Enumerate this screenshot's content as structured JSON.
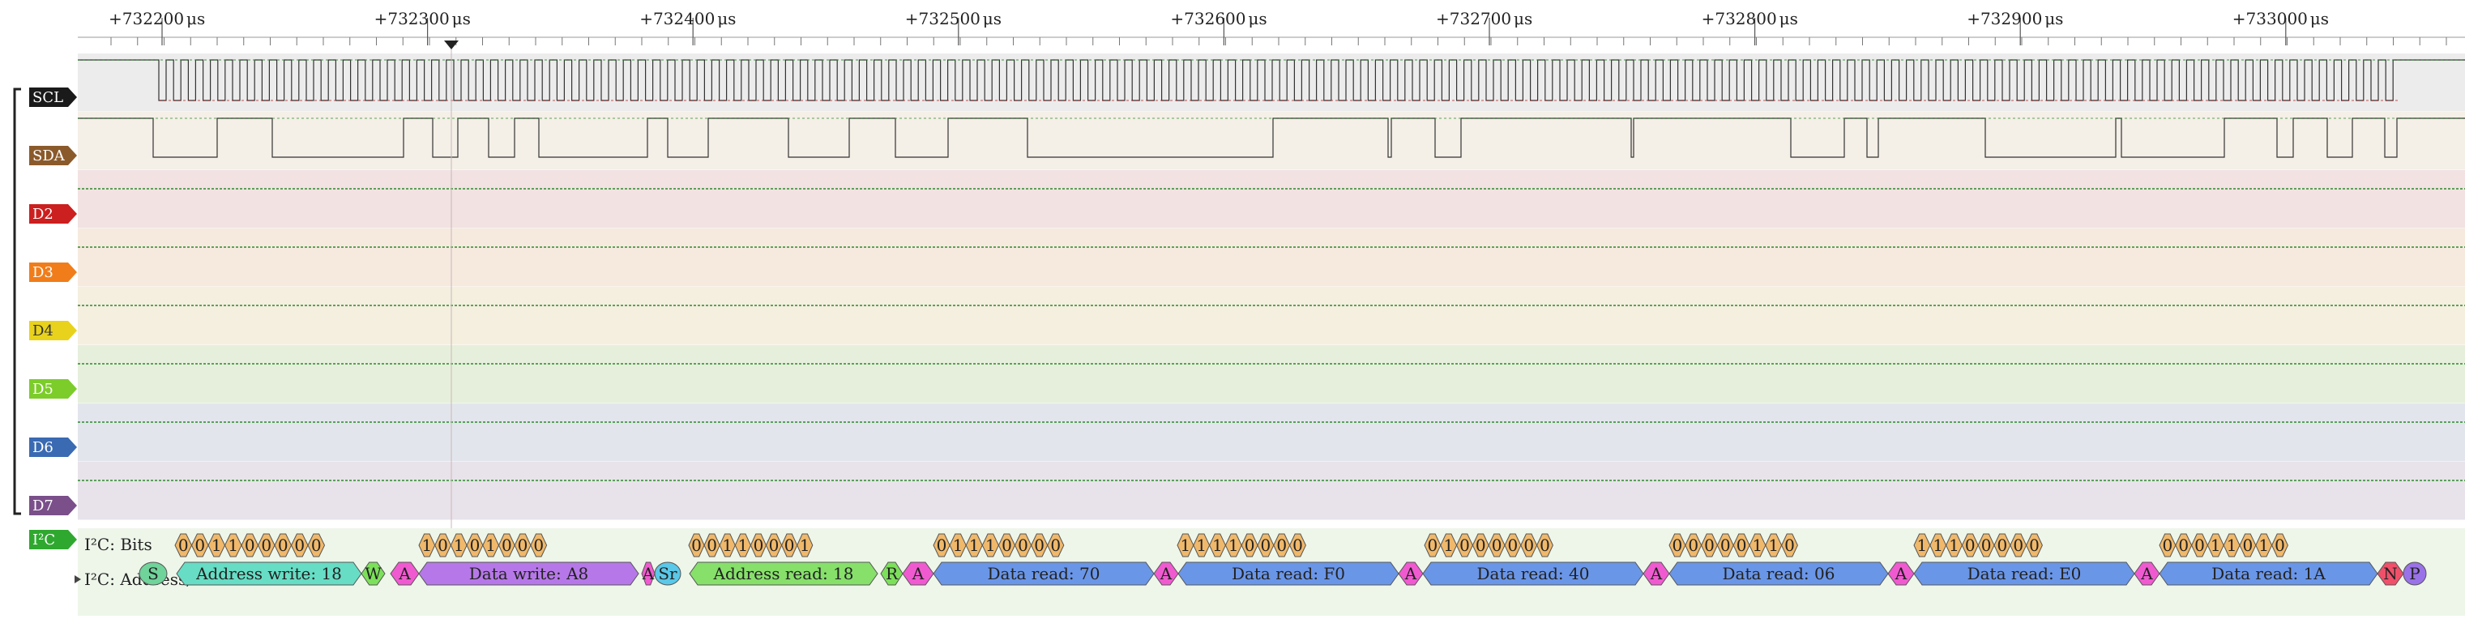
{
  "ruler": {
    "unit": "μs",
    "ticks": [
      "+732200",
      "+732300",
      "+732400",
      "+732500",
      "+732600",
      "+732700",
      "+732800",
      "+732900",
      "+733000"
    ]
  },
  "channels": [
    {
      "id": "SCL",
      "label": "SCL",
      "tag_color": "#1a1a1a",
      "text_color": "#ffffff",
      "row_bg": "#ececec"
    },
    {
      "id": "SDA",
      "label": "SDA",
      "tag_color": "#8b5a2b",
      "text_color": "#ffffff",
      "row_bg": "#f4efe7"
    },
    {
      "id": "D2",
      "label": "D2",
      "tag_color": "#cc1f1f",
      "text_color": "#ffffff",
      "row_bg": "#f2e2e2"
    },
    {
      "id": "D3",
      "label": "D3",
      "tag_color": "#f07d1a",
      "text_color": "#ffffff",
      "row_bg": "#f6eadf"
    },
    {
      "id": "D4",
      "label": "D4",
      "tag_color": "#e8d21c",
      "text_color": "#333333",
      "row_bg": "#f4efdf"
    },
    {
      "id": "D5",
      "label": "D5",
      "tag_color": "#7ccc2a",
      "text_color": "#ffffff",
      "row_bg": "#e6efdc"
    },
    {
      "id": "D6",
      "label": "D6",
      "tag_color": "#3a6ab2",
      "text_color": "#ffffff",
      "row_bg": "#e2e6ec"
    },
    {
      "id": "D7",
      "label": "D7",
      "tag_color": "#7a4f8a",
      "text_color": "#ffffff",
      "row_bg": "#e8e3ea"
    }
  ],
  "decoder": {
    "tag_label": "I²C",
    "tag_color": "#2fa82f",
    "bits_row_label": "I²C: Bits",
    "data_row_label": "I²C: Address/Data",
    "bits": [
      "0",
      "0",
      "1",
      "1",
      "0",
      "0",
      "0",
      "0",
      "0",
      "1",
      "0",
      "1",
      "0",
      "1",
      "0",
      "0",
      "0",
      "0",
      "0",
      "1",
      "1",
      "0",
      "0",
      "0",
      "1",
      "0",
      "1",
      "1",
      "1",
      "0",
      "0",
      "0",
      "0",
      "1",
      "1",
      "1",
      "1",
      "0",
      "0",
      "0",
      "0",
      "0",
      "1",
      "0",
      "0",
      "0",
      "0",
      "0",
      "0",
      "0",
      "0",
      "0",
      "0",
      "0",
      "1",
      "1",
      "0",
      "1",
      "1",
      "1",
      "0",
      "0",
      "0",
      "0",
      "0",
      "0",
      "0",
      "0",
      "1",
      "1",
      "0",
      "1",
      "0"
    ],
    "annotations": [
      {
        "kind": "start",
        "text": "S"
      },
      {
        "kind": "addr_write",
        "text": "Address write: 18"
      },
      {
        "kind": "rw",
        "text": "W"
      },
      {
        "kind": "ack",
        "text": "A"
      },
      {
        "kind": "data_write",
        "text": "Data write: A8"
      },
      {
        "kind": "ack",
        "text": "A"
      },
      {
        "kind": "repeat_start",
        "text": "Sr"
      },
      {
        "kind": "addr_read",
        "text": "Address read: 18"
      },
      {
        "kind": "rw",
        "text": "R"
      },
      {
        "kind": "ack",
        "text": "A"
      },
      {
        "kind": "data_read",
        "text": "Data read: 70"
      },
      {
        "kind": "ack",
        "text": "A"
      },
      {
        "kind": "data_read",
        "text": "Data read: F0"
      },
      {
        "kind": "ack",
        "text": "A"
      },
      {
        "kind": "data_read",
        "text": "Data read: 40"
      },
      {
        "kind": "ack",
        "text": "A"
      },
      {
        "kind": "data_read",
        "text": "Data read: 06"
      },
      {
        "kind": "ack",
        "text": "A"
      },
      {
        "kind": "data_read",
        "text": "Data read: E0"
      },
      {
        "kind": "ack",
        "text": "A"
      },
      {
        "kind": "data_read",
        "text": "Data read: 1A"
      },
      {
        "kind": "nack",
        "text": "N"
      },
      {
        "kind": "stop",
        "text": "P"
      }
    ],
    "colors": {
      "bits": "#f0b86a",
      "start": "#6fd39a",
      "addr_write": "#66ddc4",
      "rw": "#7ce05a",
      "ack": "#f05ad0",
      "data_write": "#b678e8",
      "repeat_start": "#5ac8e8",
      "addr_read": "#86e06a",
      "data_read": "#6a96e8",
      "nack": "#f0506a",
      "stop": "#9a72e8"
    }
  },
  "colors": {
    "signal_high": "#2a8a2a",
    "signal_low": "#b02020",
    "edge": "#333333",
    "cursor": "#222222"
  }
}
